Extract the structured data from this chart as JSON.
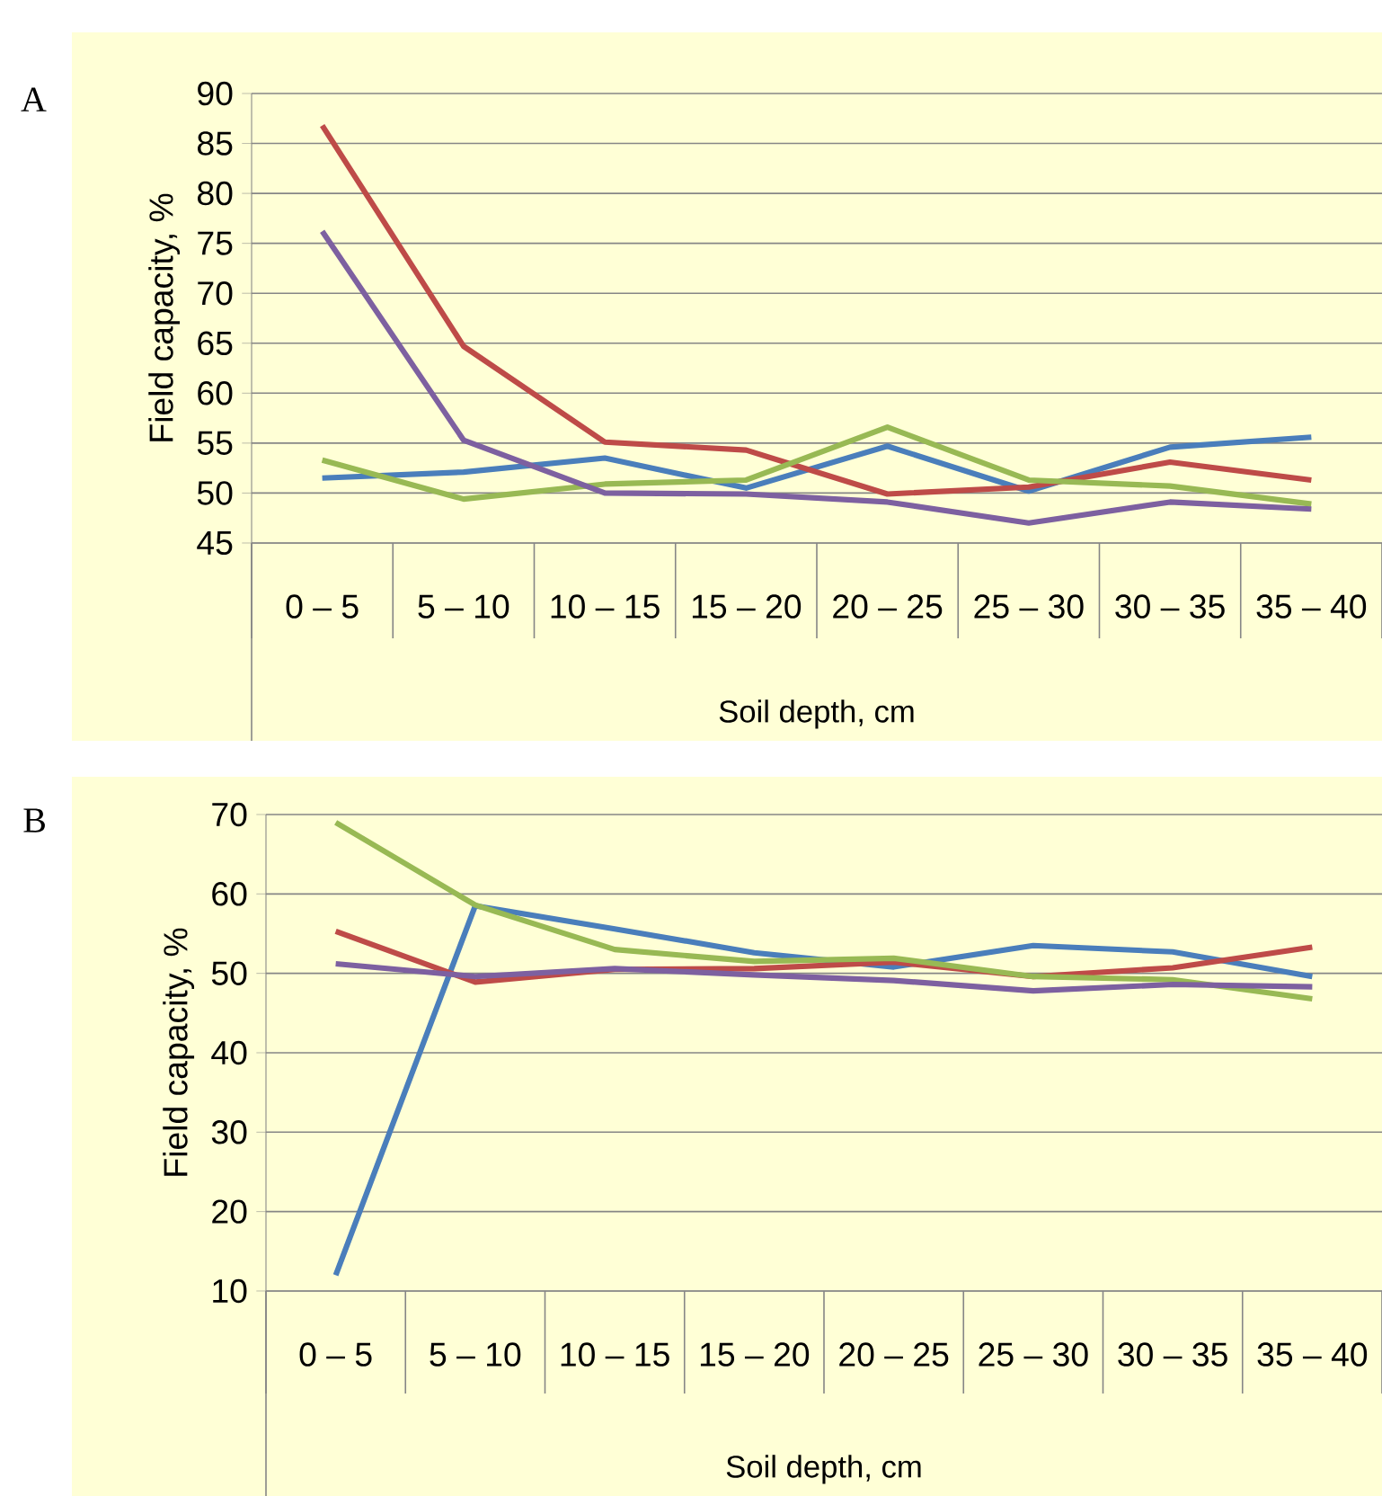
{
  "chart_data": [
    {
      "type": "line",
      "title": "A",
      "xlabel": "Soil depth, cm",
      "ylabel": "Field capacity, %",
      "categories": [
        "0 – 5",
        "5 – 10",
        "10 – 15",
        "15 – 20",
        "20 – 25",
        "25 – 30",
        "30 – 35",
        "35 – 40"
      ],
      "ylim": [
        45,
        90
      ],
      "yticks": [
        45,
        50,
        55,
        60,
        65,
        70,
        75,
        80,
        85,
        90
      ],
      "grid": "y",
      "marker": "none",
      "line_style": "solid",
      "series": [
        {
          "color": "#4a7ebb",
          "values": [
            51.5,
            52.1,
            53.5,
            50.5,
            54.7,
            50.2,
            54.6,
            55.6
          ]
        },
        {
          "color": "#be4b48",
          "values": [
            86.8,
            64.7,
            55.1,
            54.3,
            49.9,
            50.6,
            53.1,
            51.3
          ]
        },
        {
          "color": "#98b954",
          "values": [
            53.3,
            49.4,
            50.9,
            51.3,
            56.6,
            51.3,
            50.7,
            48.9
          ]
        },
        {
          "color": "#7d60a0",
          "values": [
            76.2,
            55.3,
            50.0,
            49.9,
            49.1,
            47.0,
            49.1,
            48.4
          ]
        }
      ]
    },
    {
      "type": "line",
      "title": "B",
      "xlabel": "Soil depth, cm",
      "ylabel": "Field capacity, %",
      "categories": [
        "0 – 5",
        "5 – 10",
        "10 – 15",
        "15 – 20",
        "20 – 25",
        "25 – 30",
        "30 – 35",
        "35 – 40"
      ],
      "ylim": [
        10,
        70
      ],
      "yticks": [
        10,
        20,
        30,
        40,
        50,
        60,
        70
      ],
      "grid": "y",
      "marker": "none",
      "line_style": "solid",
      "series": [
        {
          "color": "#4a7ebb",
          "values": [
            12,
            58.5,
            55.6,
            52.6,
            50.8,
            53.5,
            52.7,
            49.6
          ]
        },
        {
          "color": "#be4b48",
          "values": [
            55.3,
            48.9,
            50.5,
            50.6,
            51.4,
            49.6,
            50.7,
            53.3
          ]
        },
        {
          "color": "#98b954",
          "values": [
            69,
            58.6,
            53,
            51.5,
            51.9,
            49.6,
            49.2,
            46.8
          ]
        },
        {
          "color": "#7d60a0",
          "values": [
            51.2,
            49.6,
            50.6,
            49.8,
            49.1,
            47.8,
            48.6,
            48.3
          ]
        }
      ]
    }
  ]
}
